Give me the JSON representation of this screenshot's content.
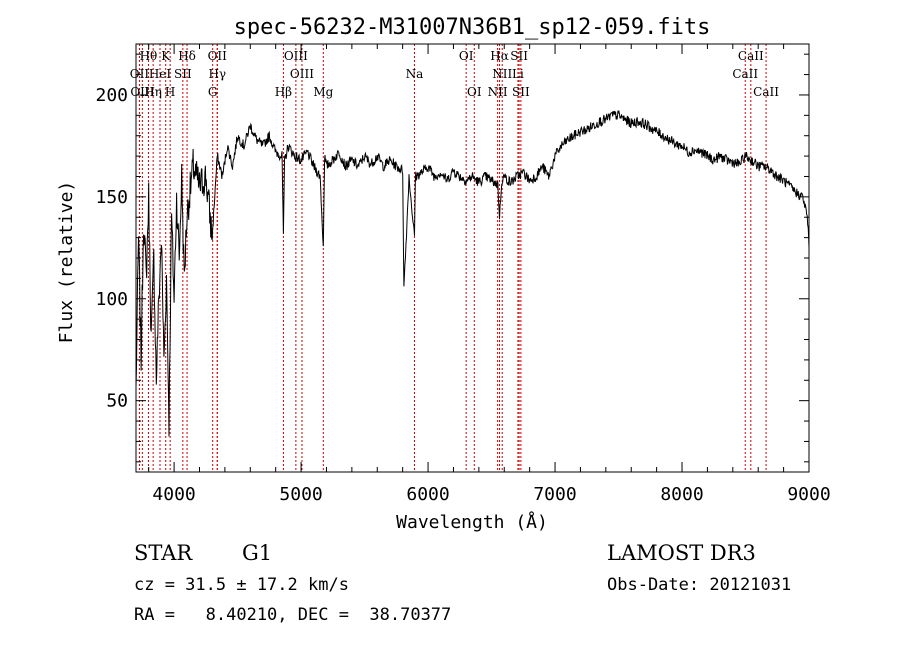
{
  "chart_data": {
    "type": "line",
    "title": "spec-56232-M31007N36B1_sp12-059.fits",
    "xlabel": "Wavelength (Å)",
    "ylabel": "Flux (relative)",
    "xlim": [
      3700,
      9000
    ],
    "ylim": [
      15,
      225
    ],
    "x_ticks": [
      4000,
      5000,
      6000,
      7000,
      8000,
      9000
    ],
    "x_tick_labels": [
      "4000",
      "5000",
      "6000",
      "7000",
      "8000",
      "9000"
    ],
    "y_ticks": [
      50,
      100,
      150,
      200
    ],
    "y_tick_labels": [
      "50",
      "100",
      "150",
      "200"
    ],
    "series": [
      {
        "color": "#000000",
        "x": [
          3700,
          3720,
          3740,
          3760,
          3780,
          3800,
          3820,
          3840,
          3860,
          3880,
          3900,
          3920,
          3940,
          3960,
          3980,
          4000,
          4020,
          4040,
          4060,
          4080,
          4100,
          4150,
          4200,
          4250,
          4300,
          4340,
          4380,
          4420,
          4460,
          4500,
          4550,
          4600,
          4650,
          4700,
          4750,
          4800,
          4850,
          4861,
          4870,
          4900,
          4950,
          5000,
          5050,
          5100,
          5150,
          5175,
          5185,
          5200,
          5250,
          5300,
          5350,
          5400,
          5450,
          5500,
          5550,
          5600,
          5650,
          5700,
          5750,
          5800,
          5810,
          5850,
          5893,
          5900,
          5950,
          6000,
          6050,
          6100,
          6150,
          6200,
          6250,
          6300,
          6350,
          6400,
          6450,
          6500,
          6550,
          6563,
          6580,
          6600,
          6650,
          6700,
          6750,
          6800,
          6850,
          6900,
          6950,
          7000,
          7050,
          7100,
          7150,
          7200,
          7250,
          7300,
          7350,
          7400,
          7450,
          7500,
          7550,
          7600,
          7650,
          7700,
          7750,
          7800,
          7850,
          7900,
          7950,
          8000,
          8050,
          8100,
          8150,
          8200,
          8250,
          8300,
          8350,
          8400,
          8450,
          8500,
          8542,
          8550,
          8600,
          8650,
          8700,
          8750,
          8800,
          8850,
          8900,
          8950,
          8970,
          8990,
          9000
        ],
        "y": [
          55,
          130,
          70,
          140,
          110,
          150,
          80,
          120,
          60,
          100,
          130,
          70,
          110,
          40,
          140,
          100,
          150,
          120,
          160,
          110,
          140,
          165,
          155,
          160,
          130,
          170,
          160,
          175,
          165,
          180,
          175,
          185,
          178,
          175,
          180,
          172,
          170,
          130,
          168,
          175,
          170,
          168,
          172,
          165,
          160,
          125,
          170,
          165,
          168,
          172,
          165,
          168,
          165,
          170,
          166,
          170,
          165,
          168,
          165,
          163,
          105,
          160,
          130,
          160,
          162,
          165,
          160,
          162,
          158,
          163,
          160,
          158,
          160,
          157,
          160,
          158,
          156,
          140,
          158,
          160,
          157,
          160,
          162,
          158,
          160,
          165,
          160,
          170,
          175,
          178,
          180,
          182,
          183,
          185,
          187,
          188,
          190,
          190,
          188,
          186,
          187,
          186,
          184,
          182,
          180,
          178,
          176,
          175,
          172,
          173,
          172,
          170,
          168,
          170,
          168,
          167,
          166,
          170,
          168,
          168,
          165,
          165,
          163,
          160,
          158,
          155,
          152,
          150,
          145,
          138,
          125
        ]
      }
    ],
    "line_markers": [
      {
        "name": "Hθ",
        "x": 3798,
        "row": 0
      },
      {
        "name": "K",
        "x": 3934,
        "row": 0
      },
      {
        "name": "Hδ",
        "x": 4102,
        "row": 0
      },
      {
        "name": "OII",
        "x": 4340,
        "row": 0
      },
      {
        "name": "OIII",
        "x": 4959,
        "row": 0
      },
      {
        "name": "OI",
        "x": 6300,
        "row": 0
      },
      {
        "name": "Hα",
        "x": 6563,
        "row": 0
      },
      {
        "name": "SII",
        "x": 6717,
        "row": 0
      },
      {
        "name": "CaII",
        "x": 8542,
        "row": 0
      },
      {
        "name": "OII",
        "x": 3727,
        "row": 1
      },
      {
        "name": "HeI",
        "x": 3889,
        "row": 1
      },
      {
        "name": "SII",
        "x": 4069,
        "row": 1
      },
      {
        "name": "Hγ",
        "x": 4340,
        "row": 1
      },
      {
        "name": "OIII",
        "x": 5007,
        "row": 1
      },
      {
        "name": "Na",
        "x": 5893,
        "row": 1
      },
      {
        "name": "NII",
        "x": 6584,
        "row": 1
      },
      {
        "name": "Li",
        "x": 6708,
        "row": 1
      },
      {
        "name": "CaII",
        "x": 8498,
        "row": 1
      },
      {
        "name": "OIII",
        "x": 3750,
        "row": 2
      },
      {
        "name": "Hη",
        "x": 3835,
        "row": 2
      },
      {
        "name": "H",
        "x": 3969,
        "row": 2
      },
      {
        "name": "G",
        "x": 4304,
        "row": 2
      },
      {
        "name": "Hβ",
        "x": 4861,
        "row": 2
      },
      {
        "name": "Mg",
        "x": 5175,
        "row": 2
      },
      {
        "name": "OI",
        "x": 6364,
        "row": 2
      },
      {
        "name": "NII",
        "x": 6548,
        "row": 2
      },
      {
        "name": "SII",
        "x": 6731,
        "row": 2
      },
      {
        "name": "CaII",
        "x": 8662,
        "row": 2
      }
    ],
    "marker_color": "#cc0000"
  },
  "info": {
    "object_class": "STAR",
    "subclass": "G1",
    "survey": "LAMOST DR3",
    "redshift": "cz = 31.5 ± 17.2 km/s",
    "obs_date": "Obs-Date: 20121031",
    "coords": "RA =   8.40210, DEC =  38.70377"
  }
}
